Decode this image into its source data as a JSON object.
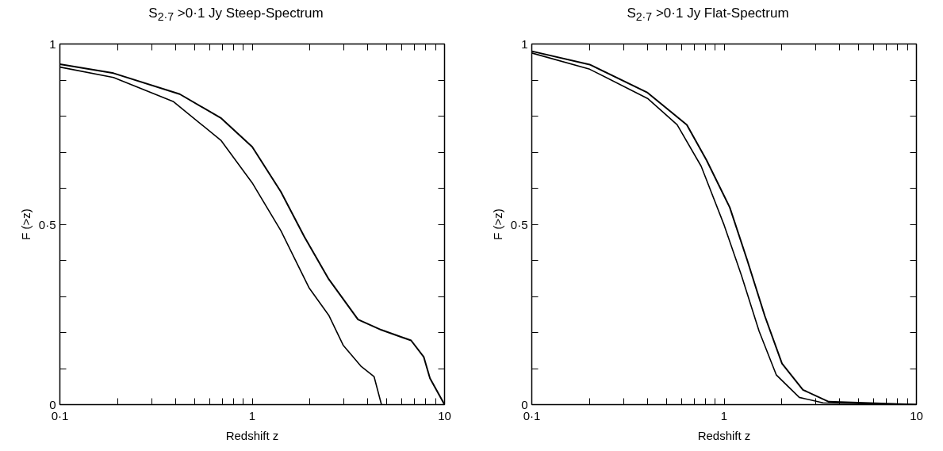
{
  "chart_data": [
    {
      "type": "line",
      "title": "S$_{2·7}$ >0·1 Jy Steep-Spectrum",
      "xlabel": "Redshift z",
      "ylabel": "F (>z)",
      "log": "x",
      "grid": false,
      "line_style": "solid",
      "marker": "none",
      "xlim": [
        0.1,
        10
      ],
      "ylim": [
        0,
        1
      ],
      "xticks": [
        {
          "value": 0.1,
          "label": "0·1"
        },
        {
          "value": 0.2,
          "label": null
        },
        {
          "value": 0.3,
          "label": null
        },
        {
          "value": 0.4,
          "label": null
        },
        {
          "value": 0.5,
          "label": null
        },
        {
          "value": 0.6,
          "label": null
        },
        {
          "value": 0.7,
          "label": null
        },
        {
          "value": 0.8,
          "label": null
        },
        {
          "value": 0.9,
          "label": null
        },
        1,
        {
          "value": 2,
          "label": null
        },
        {
          "value": 3,
          "label": null
        },
        {
          "value": 4,
          "label": null
        },
        {
          "value": 5,
          "label": null
        },
        {
          "value": 6,
          "label": null
        },
        {
          "value": 7,
          "label": null
        },
        {
          "value": 8,
          "label": null
        },
        {
          "value": 9,
          "label": null
        },
        10
      ],
      "yticks": [
        0,
        {
          "value": 0.1,
          "label": null
        },
        {
          "value": 0.2,
          "label": null
        },
        {
          "value": 0.3,
          "label": null
        },
        {
          "value": 0.4,
          "label": null
        },
        {
          "value": 0.5,
          "label": "0·5"
        },
        {
          "value": 0.6,
          "label": null
        },
        {
          "value": 0.7,
          "label": null
        },
        {
          "value": 0.8,
          "label": null
        },
        {
          "value": 0.9,
          "label": null
        },
        1
      ],
      "series": [
        {
          "color": "#000000",
          "x": [
            0.1,
            0.19,
            0.42,
            0.69,
            1.0,
            1.41,
            1.87,
            2.5,
            3.55,
            4.7,
            6.7,
            7.8,
            8.4,
            10
          ],
          "values": [
            0.944,
            0.919,
            0.861,
            0.794,
            0.715,
            0.59,
            0.465,
            0.348,
            0.236,
            0.207,
            0.178,
            0.132,
            0.073,
            0
          ]
        },
        {
          "color": "#000000",
          "x": [
            0.1,
            0.19,
            0.39,
            0.69,
            1.0,
            1.41,
            1.98,
            2.5,
            2.97,
            3.67,
            4.3,
            4.7
          ],
          "values": [
            0.936,
            0.907,
            0.84,
            0.732,
            0.615,
            0.482,
            0.323,
            0.248,
            0.165,
            0.107,
            0.078,
            0
          ]
        }
      ]
    },
    {
      "type": "line",
      "title": "S$_{2·7}$ >0·1 Jy Flat-Spectrum",
      "xlabel": "Redshift z",
      "ylabel": "F (>z)",
      "log": "x",
      "grid": false,
      "line_style": "solid",
      "marker": "none",
      "xlim": [
        0.1,
        10
      ],
      "ylim": [
        0,
        1
      ],
      "xticks": [
        {
          "value": 0.1,
          "label": "0·1"
        },
        {
          "value": 0.2,
          "label": null
        },
        {
          "value": 0.3,
          "label": null
        },
        {
          "value": 0.4,
          "label": null
        },
        {
          "value": 0.5,
          "label": null
        },
        {
          "value": 0.6,
          "label": null
        },
        {
          "value": 0.7,
          "label": null
        },
        {
          "value": 0.8,
          "label": null
        },
        {
          "value": 0.9,
          "label": null
        },
        1,
        {
          "value": 2,
          "label": null
        },
        {
          "value": 3,
          "label": null
        },
        {
          "value": 4,
          "label": null
        },
        {
          "value": 5,
          "label": null
        },
        {
          "value": 6,
          "label": null
        },
        {
          "value": 7,
          "label": null
        },
        {
          "value": 8,
          "label": null
        },
        {
          "value": 9,
          "label": null
        },
        10
      ],
      "yticks": [
        0,
        {
          "value": 0.1,
          "label": null
        },
        {
          "value": 0.2,
          "label": null
        },
        {
          "value": 0.3,
          "label": null
        },
        {
          "value": 0.4,
          "label": null
        },
        {
          "value": 0.5,
          "label": "0·5"
        },
        {
          "value": 0.6,
          "label": null
        },
        {
          "value": 0.7,
          "label": null
        },
        {
          "value": 0.8,
          "label": null
        },
        {
          "value": 0.9,
          "label": null
        },
        1
      ],
      "series": [
        {
          "color": "#000000",
          "x": [
            0.1,
            0.2,
            0.4,
            0.64,
            0.81,
            1.07,
            1.32,
            1.63,
            2.0,
            2.57,
            3.5,
            10
          ],
          "values": [
            0.98,
            0.943,
            0.865,
            0.776,
            0.678,
            0.547,
            0.4,
            0.245,
            0.114,
            0.041,
            0.008,
            0
          ]
        },
        {
          "color": "#000000",
          "x": [
            0.1,
            0.2,
            0.4,
            0.57,
            0.76,
            1.0,
            1.23,
            1.52,
            1.87,
            2.46,
            3.27,
            10
          ],
          "values": [
            0.975,
            0.93,
            0.849,
            0.776,
            0.661,
            0.498,
            0.359,
            0.204,
            0.082,
            0.02,
            0.005,
            0
          ]
        }
      ]
    }
  ]
}
